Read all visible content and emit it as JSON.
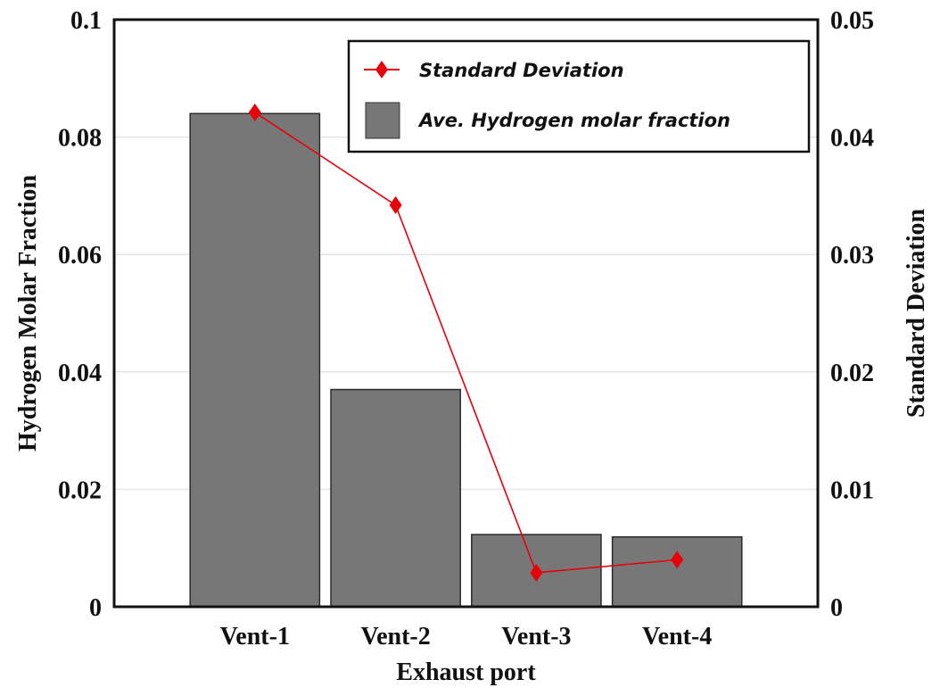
{
  "chart_data": {
    "type": "bar",
    "xlabel": "Exhaust port",
    "ylabel": "Hydrogen Molar Fraction",
    "y2label": "Standard Deviation",
    "categories": [
      "Vent-1",
      "Vent-2",
      "Vent-3",
      "Vent-4"
    ],
    "ylim": [
      0,
      0.1
    ],
    "y2lim": [
      0,
      0.05
    ],
    "yticks": [
      "0",
      "0.02",
      "0.04",
      "0.06",
      "0.08",
      "0.1"
    ],
    "y2ticks": [
      "0",
      "0.01",
      "0.02",
      "0.03",
      "0.04",
      "0.05"
    ],
    "grid": true,
    "legend_position": "top-right",
    "series": [
      {
        "name": "Ave. Hydrogen molar fraction",
        "kind": "bar",
        "axis": "left",
        "color": "#777777",
        "values": [
          0.084,
          0.037,
          0.0123,
          0.0119
        ]
      },
      {
        "name": "Standard Deviation",
        "kind": "line",
        "axis": "right",
        "color": "#e8000b",
        "marker": "diamond",
        "values": [
          0.0421,
          0.0342,
          0.0029,
          0.004
        ]
      }
    ]
  }
}
